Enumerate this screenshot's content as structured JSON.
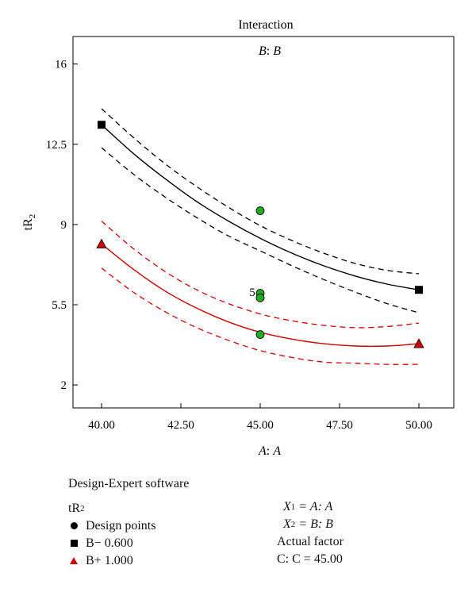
{
  "chart_data": {
    "type": "line",
    "title": "Interaction",
    "subtitle_var": "B",
    "subtitle_name": "B",
    "xlabel_var": "A",
    "xlabel_name": "A",
    "ylabel_main": "tR",
    "ylabel_sub": "2",
    "xlim": [
      39.1,
      51.1
    ],
    "ylim": [
      1.0,
      17.2
    ],
    "xticks": [
      40.0,
      42.5,
      45.0,
      47.5,
      50.0
    ],
    "xtick_labels": [
      "40.00",
      "42.50",
      "45.00",
      "47.50",
      "50.00"
    ],
    "yticks": [
      2,
      5.5,
      9,
      12.5,
      16
    ],
    "ytick_labels": [
      "2",
      "5.5",
      "9",
      "12.5",
      "16"
    ],
    "series": [
      {
        "name": "B− 0.600",
        "color": "#000000",
        "marker": "square",
        "x": [
          40,
          41,
          42,
          43,
          44,
          45,
          46,
          47,
          48,
          49,
          50
        ],
        "y": [
          13.35,
          12.1,
          11.0,
          10.0,
          9.15,
          8.4,
          7.75,
          7.2,
          6.75,
          6.4,
          6.15
        ],
        "upper": [
          14.05,
          12.8,
          11.65,
          10.65,
          9.75,
          8.95,
          8.3,
          7.75,
          7.3,
          7.0,
          6.85
        ],
        "lower": [
          12.35,
          11.2,
          10.2,
          9.3,
          8.5,
          7.85,
          7.2,
          6.6,
          6.05,
          5.55,
          5.15
        ],
        "endpoints_x": [
          40,
          50
        ],
        "endpoints_y": [
          13.35,
          6.15
        ]
      },
      {
        "name": "B+ 1.000",
        "color": "#cc0000",
        "marker": "triangle",
        "x": [
          40,
          41,
          42,
          43,
          44,
          45,
          46,
          47,
          48,
          49,
          50
        ],
        "y": [
          8.15,
          7.05,
          6.1,
          5.35,
          4.75,
          4.3,
          4.0,
          3.8,
          3.7,
          3.7,
          3.8
        ],
        "upper": [
          9.15,
          7.95,
          6.95,
          6.15,
          5.55,
          5.1,
          4.8,
          4.6,
          4.5,
          4.55,
          4.7
        ],
        "lower": [
          7.1,
          6.05,
          5.2,
          4.5,
          3.95,
          3.5,
          3.2,
          3.0,
          2.95,
          2.9,
          2.9
        ],
        "endpoints_x": [
          40,
          50
        ],
        "endpoints_y": [
          8.15,
          3.8
        ]
      }
    ],
    "design_points": {
      "color": "#22aa22",
      "x": [
        45,
        45,
        45,
        45
      ],
      "y": [
        9.6,
        6.0,
        5.8,
        4.2
      ],
      "label": "5",
      "label_x": 44.75,
      "label_y": 6.05
    },
    "grid": false
  },
  "legend": {
    "software": "Design-Expert software",
    "response_main": "tR",
    "response_sub": "2",
    "items": [
      {
        "symbol": "dot",
        "label": "Design points"
      },
      {
        "symbol": "square",
        "label": "B− 0.600"
      },
      {
        "symbol": "triangle",
        "label": "B+ 1.000"
      }
    ],
    "x1_var": "X",
    "x1_sub": "1",
    "x1_rhs": "= A: A",
    "x2_var": "X",
    "x2_sub": "2",
    "x2_rhs": "= B: B",
    "actual_factor": "Actual factor",
    "cfactor": "C: C = 45.00"
  }
}
